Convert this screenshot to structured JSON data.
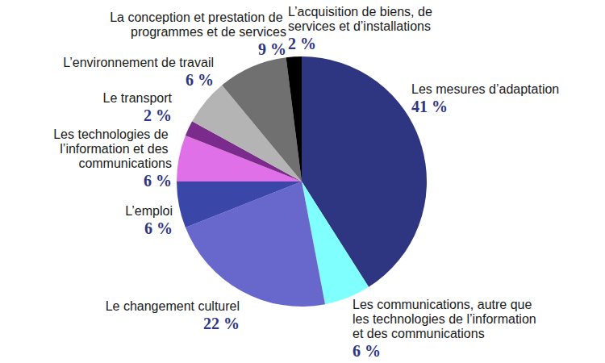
{
  "chart_data": {
    "type": "pie",
    "categories": [
      "Les mesures d’adaptation",
      "Les communications, autre que les technologies de l’information et des communications",
      "Le changement culturel",
      "L’emploi",
      "Les technologies de l’information et des communications",
      "Le transport",
      "L’environnement de travail",
      "La conception et prestation de programmes et de services",
      "L’acquisition de biens, de services et d’installations"
    ],
    "values": [
      41,
      6,
      22,
      6,
      6,
      2,
      6,
      9,
      2
    ],
    "value_labels": [
      "41 %",
      "6 %",
      "22 %",
      "6 %",
      "6 %",
      "2 %",
      "6 %",
      "9 %",
      "2 %"
    ],
    "colors": [
      "#2e3581",
      "#80ffff",
      "#6868cc",
      "#3a46a8",
      "#e070e8",
      "#7b2b8b",
      "#b4b4b4",
      "#707070",
      "#000000"
    ],
    "data_labels": true
  }
}
